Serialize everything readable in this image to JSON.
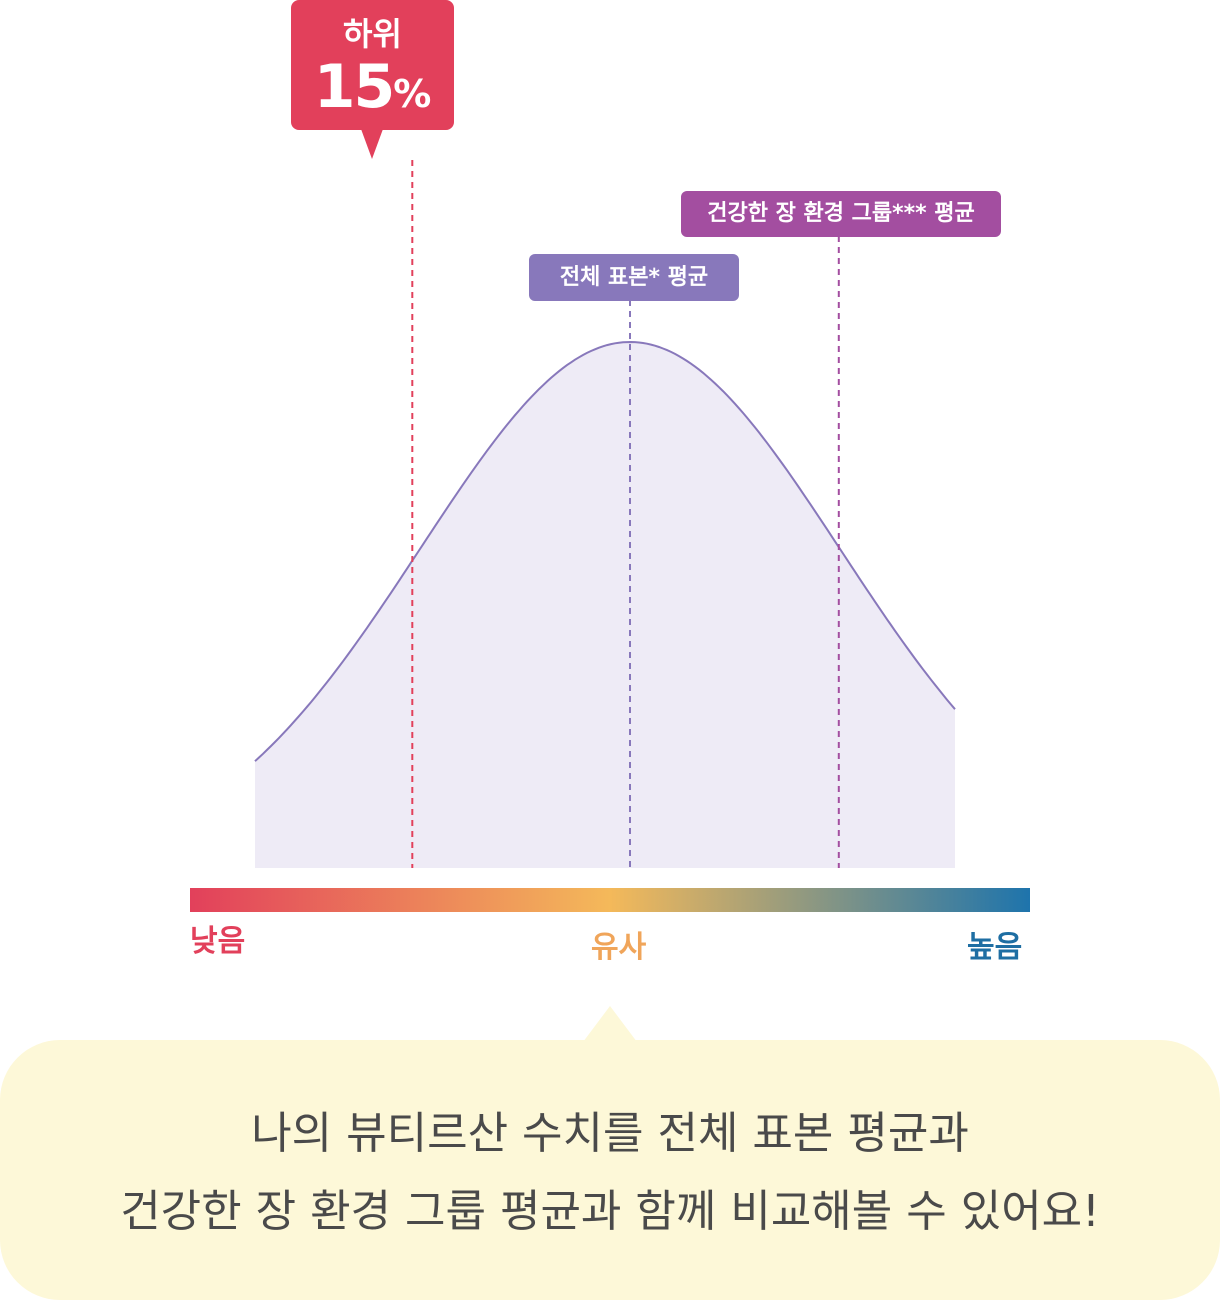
{
  "chart_data": {
    "type": "area",
    "title": "",
    "xlabel": "",
    "ylabel": "",
    "axis_labels": {
      "low": "낮음",
      "middle": "유사",
      "high": "높음"
    },
    "gradient_colors": [
      "#e2405b",
      "#f4b95a",
      "#1e74ac"
    ],
    "curve": {
      "kind": "normal_distribution",
      "fill": "#eeebf6",
      "stroke": "#8878bb"
    },
    "markers": [
      {
        "id": "user",
        "label": "하위",
        "value": "15",
        "unit": "%",
        "percentile": 15,
        "color": "#e2405b"
      },
      {
        "id": "overall",
        "label": "전체 표본* 평균",
        "percentile": 50,
        "color": "#8878bb"
      },
      {
        "id": "healthy",
        "label": "건강한 장 환경 그룹*** 평균",
        "percentile": 84,
        "color": "#a34ea0"
      }
    ]
  },
  "message": {
    "line1": "나의 뷰티르산 수치를 전체 표본 평균과",
    "line2": "건강한 장 환경 그룹 평균과 함께 비교해볼 수 있어요!",
    "background": "#fdf8d8"
  }
}
